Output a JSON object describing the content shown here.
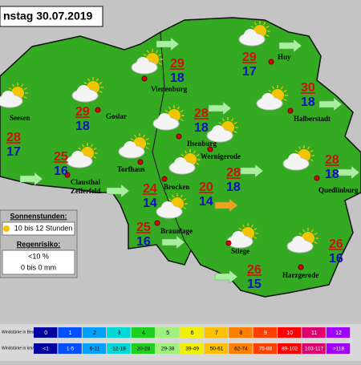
{
  "header": {
    "title": "nstag 30.07.2019"
  },
  "legend": {
    "sun_label": "Sonnenstunden:",
    "sun_value": "10 bis 12 Stunden",
    "rain_label": "Regenrisiko:",
    "rain_percent": "<10 %",
    "rain_amount": "0 bis 0 mm"
  },
  "cities": [
    {
      "name": [
        "Seesen"
      ],
      "high": 28,
      "low": 17
    },
    {
      "name": [
        "Goslar"
      ],
      "high": 29,
      "low": 18
    },
    {
      "name": [
        "Vienenburg"
      ],
      "high": 29,
      "low": 18
    },
    {
      "name": [
        "Huy"
      ],
      "high": 29,
      "low": 17
    },
    {
      "name": [
        "Halberstadt"
      ],
      "high": 30,
      "low": 18
    },
    {
      "name": [
        "Ilsenburg"
      ],
      "high": 28,
      "low": 18
    },
    {
      "name": [
        "Wernigerode"
      ],
      "high": 28,
      "low": 18
    },
    {
      "name": [
        "Clausthal",
        "Zellerfeld"
      ],
      "high": 25,
      "low": 16
    },
    {
      "name": [
        "Torfhaus"
      ],
      "high": 24,
      "low": 14
    },
    {
      "name": [
        "Brocken"
      ],
      "high": 20,
      "low": 14
    },
    {
      "name": [
        "Braunlage"
      ],
      "high": 25,
      "low": 16
    },
    {
      "name": [
        "Quedlinburg"
      ],
      "high": 28,
      "low": 18
    },
    {
      "name": [
        "Stiege"
      ],
      "high": 26,
      "low": 15
    },
    {
      "name": [
        "Harzgerode"
      ],
      "high": 26,
      "low": 16
    }
  ],
  "wind_scale": {
    "beaufort_label": "Windstärke in Beaufort",
    "kmh_label": "Windstärke in km/h",
    "beaufort": [
      "0",
      "1",
      "2",
      "3",
      "4",
      "5",
      "6",
      "7",
      "8",
      "9",
      "10",
      "11",
      "12"
    ],
    "kmh": [
      "<1",
      "1-5",
      "6-11",
      "12-19",
      "20-28",
      "29-38",
      "39-49",
      "50-61",
      "62-74",
      "75-88",
      "89-102",
      "103-117",
      ">118"
    ]
  }
}
